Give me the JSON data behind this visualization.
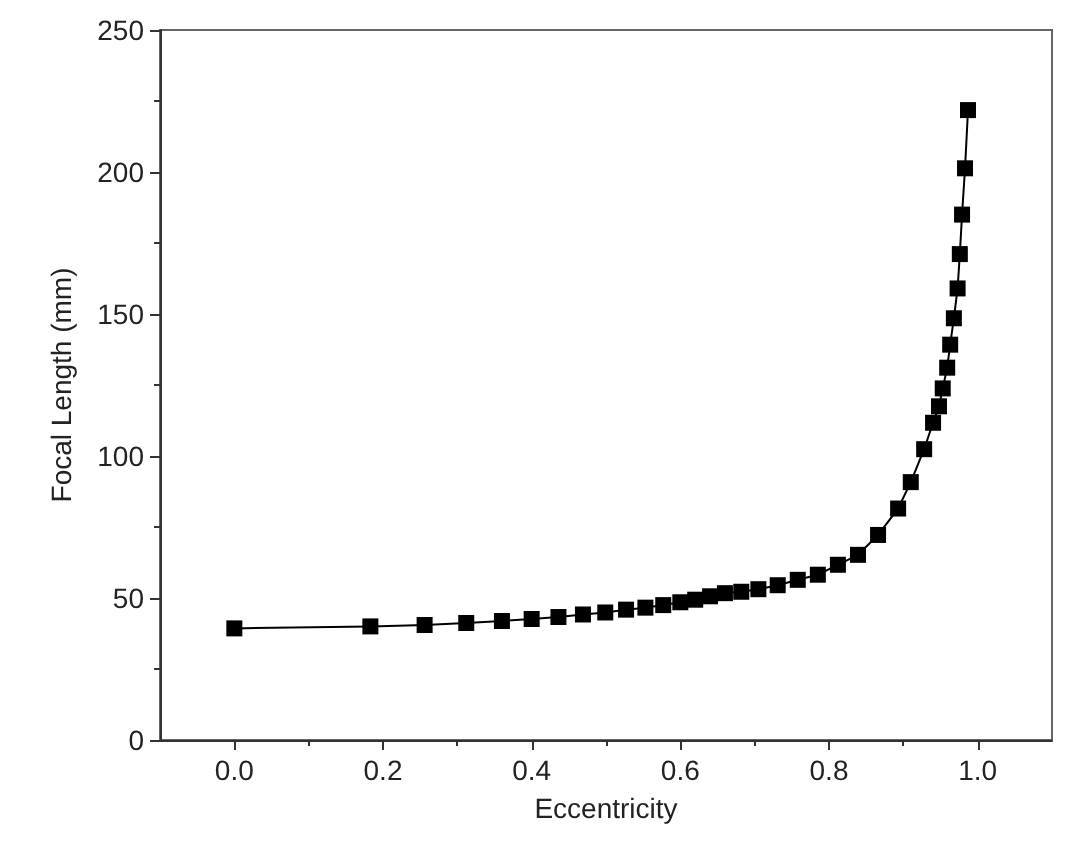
{
  "chart_data": {
    "type": "line",
    "xlabel": "Eccentricity",
    "ylabel": "Focal Length (mm)",
    "marker": "square",
    "line_style": "solid",
    "series": [
      {
        "color": "#000000",
        "x": [
          0,
          0.183,
          0.256,
          0.312,
          0.36,
          0.4,
          0.436,
          0.469,
          0.499,
          0.527,
          0.553,
          0.577,
          0.6,
          0.62,
          0.64,
          0.66,
          0.682,
          0.705,
          0.731,
          0.758,
          0.785,
          0.812,
          0.839,
          0.866,
          0.893,
          0.91,
          0.928,
          0.94,
          0.948,
          0.953,
          0.959,
          0.963,
          0.968,
          0.973,
          0.976,
          0.979,
          0.983,
          0.987
        ],
        "values": [
          39.3,
          40,
          40.5,
          41.2,
          41.9,
          42.6,
          43.3,
          44.2,
          44.9,
          45.9,
          46.6,
          47.5,
          48.5,
          49.4,
          50.6,
          51.7,
          52.2,
          53.1,
          54.5,
          56.4,
          58.2,
          61.7,
          65.2,
          72.2,
          81.5,
          90.8,
          102.4,
          111.7,
          117.5,
          123.8,
          131.1,
          139.2,
          148.5,
          159,
          171.1,
          185,
          201.3,
          221.8
        ]
      }
    ],
    "xlim": [
      -0.1,
      1.1
    ],
    "xticks": [
      {
        "value": 0,
        "label": "0.0"
      },
      0.2,
      0.4,
      0.6,
      0.8,
      {
        "value": 1,
        "label": "1.0"
      }
    ],
    "ylim": [
      0,
      250
    ],
    "yticks": [
      0,
      50,
      100,
      150,
      200,
      250
    ]
  }
}
